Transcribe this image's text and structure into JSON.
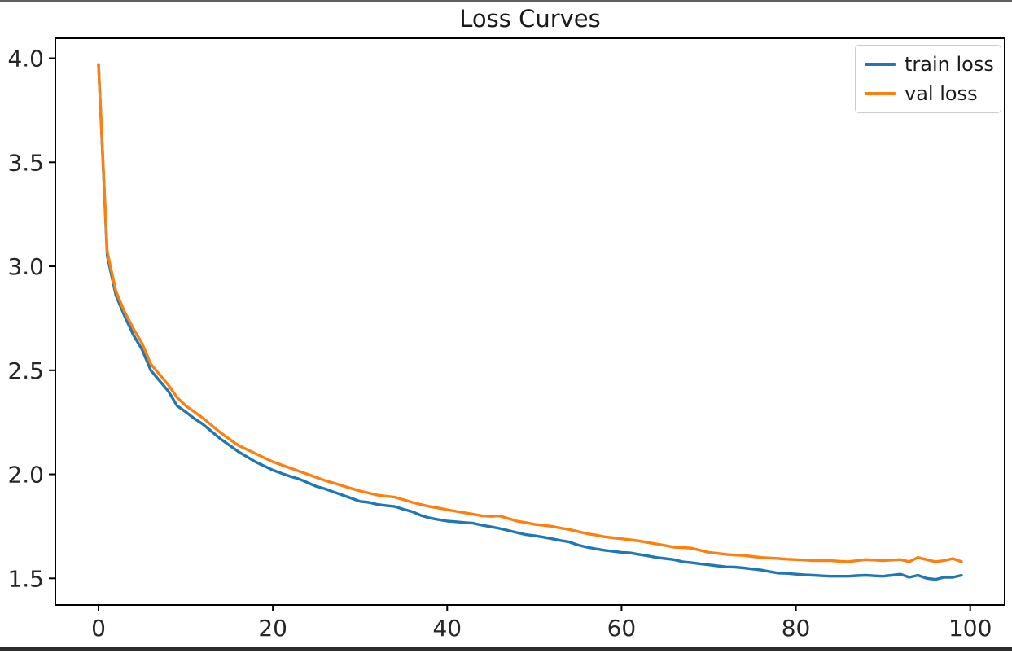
{
  "window": {
    "background": "#ffffff",
    "top_border_color": "#5f5f5f",
    "bottom_border_color": "#2c2c2c"
  },
  "chart_data": {
    "type": "line",
    "title": "Loss Curves",
    "xlabel": "",
    "ylabel": "",
    "x_start": 0,
    "x_step": 1,
    "n_points": 100,
    "x_ticks": [
      0,
      20,
      40,
      60,
      80,
      100
    ],
    "y_ticks": [
      1.5,
      2.0,
      2.5,
      3.0,
      3.5,
      4.0
    ],
    "xlim": [
      -4.95,
      103.95
    ],
    "ylim": [
      1.372,
      4.096
    ],
    "grid": false,
    "legend_position": "upper right",
    "axis_color": "#000000",
    "tick_label_color": "#262626",
    "title_color": "#1a1a1a",
    "series": [
      {
        "name": "train loss",
        "color": "#1f77b4",
        "values": [
          3.97,
          3.05,
          2.86,
          2.76,
          2.67,
          2.6,
          2.5,
          2.45,
          2.4,
          2.33,
          2.3,
          2.268,
          2.24,
          2.205,
          2.17,
          2.14,
          2.11,
          2.085,
          2.06,
          2.04,
          2.02,
          2.005,
          1.99,
          1.978,
          1.96,
          1.942,
          1.93,
          1.915,
          1.9,
          1.885,
          1.87,
          1.865,
          1.855,
          1.85,
          1.845,
          1.832,
          1.82,
          1.802,
          1.79,
          1.782,
          1.775,
          1.772,
          1.768,
          1.765,
          1.755,
          1.748,
          1.74,
          1.73,
          1.72,
          1.71,
          1.705,
          1.698,
          1.69,
          1.682,
          1.675,
          1.66,
          1.65,
          1.642,
          1.635,
          1.63,
          1.625,
          1.622,
          1.615,
          1.608,
          1.6,
          1.595,
          1.59,
          1.58,
          1.575,
          1.57,
          1.565,
          1.56,
          1.555,
          1.554,
          1.55,
          1.545,
          1.54,
          1.532,
          1.525,
          1.524,
          1.52,
          1.517,
          1.515,
          1.512,
          1.51,
          1.51,
          1.51,
          1.513,
          1.515,
          1.512,
          1.51,
          1.515,
          1.52,
          1.505,
          1.515,
          1.5,
          1.495,
          1.505,
          1.505,
          1.515
        ]
      },
      {
        "name": "val loss",
        "color": "#ff7f0e",
        "values": [
          3.97,
          3.07,
          2.88,
          2.78,
          2.7,
          2.63,
          2.53,
          2.48,
          2.43,
          2.37,
          2.33,
          2.3,
          2.27,
          2.235,
          2.2,
          2.17,
          2.14,
          2.12,
          2.1,
          2.08,
          2.06,
          2.045,
          2.03,
          2.015,
          2.0,
          1.985,
          1.97,
          1.958,
          1.945,
          1.932,
          1.92,
          1.91,
          1.9,
          1.895,
          1.89,
          1.878,
          1.865,
          1.855,
          1.845,
          1.838,
          1.83,
          1.822,
          1.815,
          1.808,
          1.8,
          1.798,
          1.8,
          1.788,
          1.775,
          1.768,
          1.76,
          1.755,
          1.75,
          1.742,
          1.735,
          1.725,
          1.715,
          1.708,
          1.7,
          1.695,
          1.69,
          1.685,
          1.68,
          1.672,
          1.665,
          1.658,
          1.65,
          1.648,
          1.645,
          1.635,
          1.625,
          1.62,
          1.615,
          1.612,
          1.61,
          1.605,
          1.6,
          1.598,
          1.595,
          1.592,
          1.59,
          1.588,
          1.585,
          1.585,
          1.585,
          1.582,
          1.58,
          1.585,
          1.59,
          1.588,
          1.585,
          1.588,
          1.59,
          1.58,
          1.6,
          1.59,
          1.58,
          1.585,
          1.595,
          1.58
        ]
      }
    ]
  }
}
